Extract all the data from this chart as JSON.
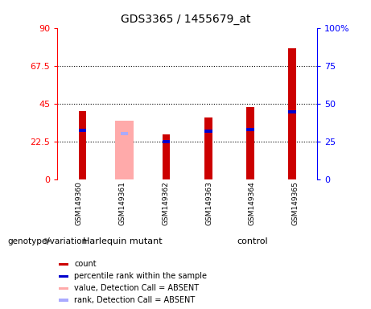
{
  "title": "GDS3365 / 1455679_at",
  "samples": [
    "GSM149360",
    "GSM149361",
    "GSM149362",
    "GSM149363",
    "GSM149364",
    "GSM149365"
  ],
  "groups": [
    "Harlequin mutant",
    "control"
  ],
  "count_values": [
    40.5,
    0,
    26.5,
    36.5,
    43.0,
    78.0
  ],
  "rank_values": [
    29.0,
    0,
    22.5,
    28.5,
    29.5,
    40.0
  ],
  "absent_value": [
    0,
    35.0,
    0,
    0,
    0,
    0
  ],
  "absent_rank": [
    0,
    27.0,
    0,
    0,
    0,
    0
  ],
  "is_absent": [
    false,
    true,
    true,
    false,
    false,
    false
  ],
  "absent_count_only": [
    false,
    false,
    true,
    false,
    false,
    false
  ],
  "count_color": "#cc0000",
  "rank_color": "#0000cc",
  "absent_count_color": "#ffaaaa",
  "absent_rank_color": "#aaaaff",
  "ylim_left": [
    0,
    90
  ],
  "ylim_right": [
    0,
    100
  ],
  "yticks_left": [
    0,
    22.5,
    45,
    67.5,
    90
  ],
  "yticks_right": [
    0,
    25,
    50,
    75,
    100
  ],
  "ytick_labels_left": [
    "0",
    "22.5",
    "45",
    "67.5",
    "90"
  ],
  "ytick_labels_right": [
    "0",
    "25",
    "50",
    "75",
    "100%"
  ],
  "hline_values": [
    22.5,
    45,
    67.5
  ],
  "plot_bg": "#ffffff",
  "group_bg": "#90ee90",
  "label_row_bg": "#d0d0d0",
  "legend_items": [
    [
      "#cc0000",
      "count"
    ],
    [
      "#0000cc",
      "percentile rank within the sample"
    ],
    [
      "#ffaaaa",
      "value, Detection Call = ABSENT"
    ],
    [
      "#aaaaff",
      "rank, Detection Call = ABSENT"
    ]
  ]
}
